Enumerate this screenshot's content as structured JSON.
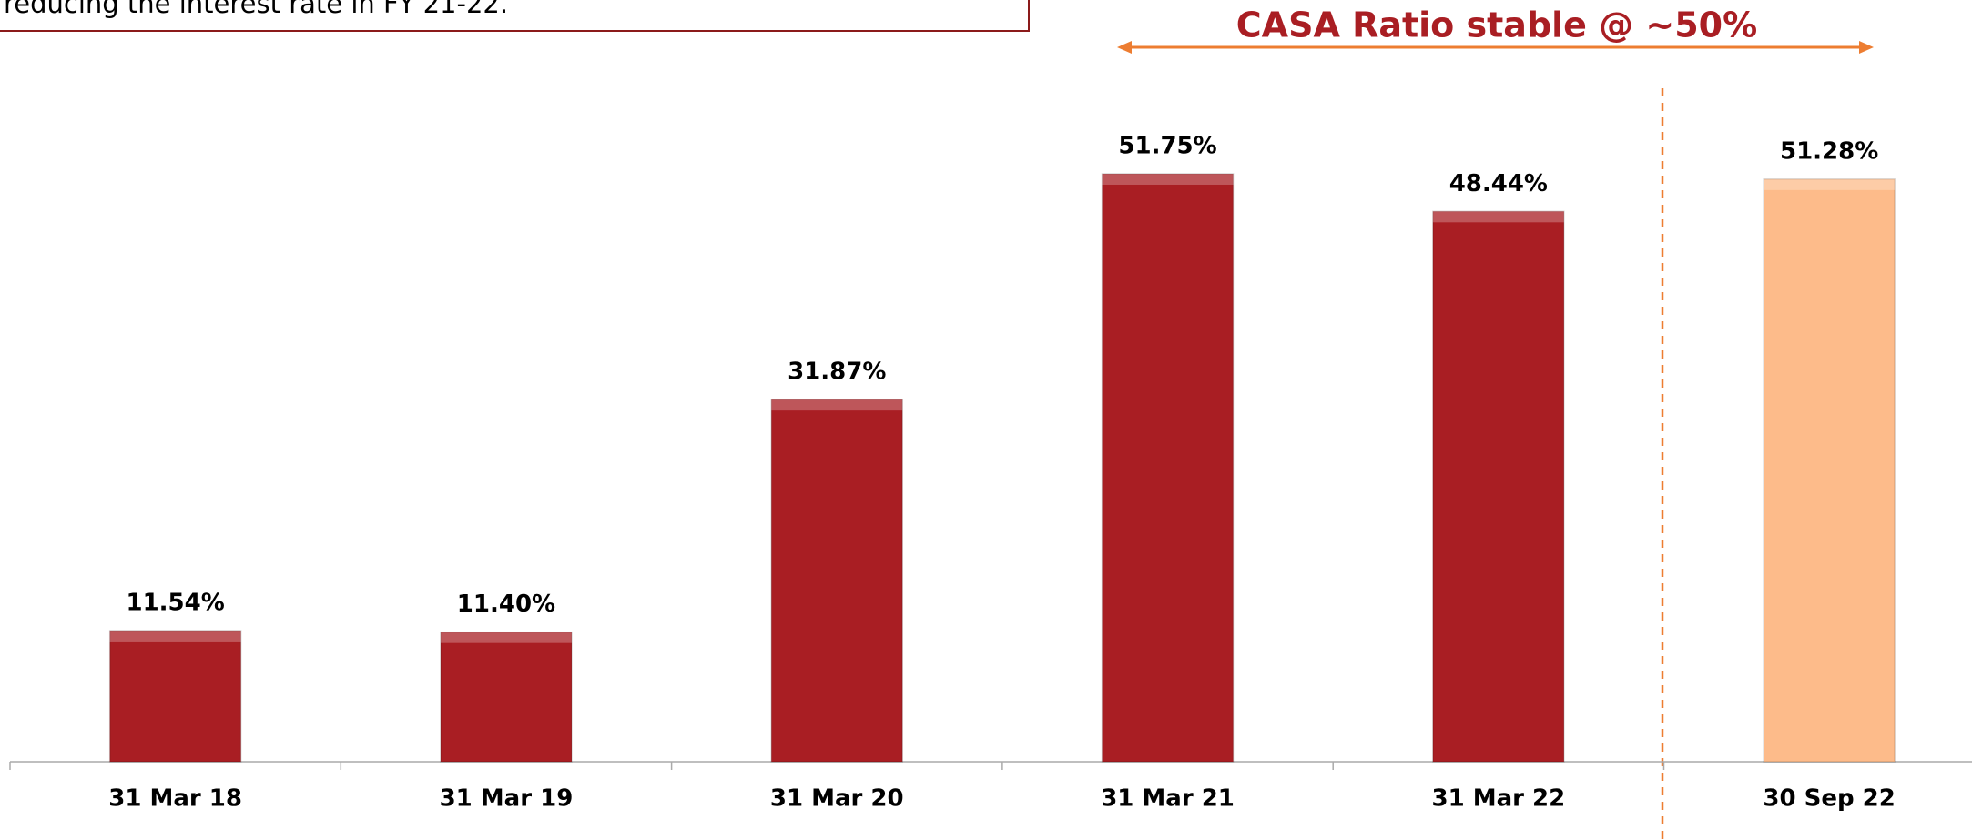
{
  "text_box": "reducing the interest rate in FY 21-22.",
  "chart_data": {
    "type": "bar",
    "annotation": "CASA Ratio stable @ ~50%",
    "categories": [
      "31 Mar 18",
      "31 Mar 19",
      "31 Mar 20",
      "31 Mar 21",
      "31 Mar 22",
      "30 Sep 22"
    ],
    "values": [
      11.54,
      11.4,
      31.87,
      51.75,
      48.44,
      51.28
    ],
    "value_labels": [
      "11.54%",
      "11.40%",
      "31.87%",
      "51.75%",
      "48.44%",
      "51.28%"
    ],
    "colors": [
      "#a91e23",
      "#a91e23",
      "#a91e23",
      "#a91e23",
      "#a91e23",
      "#fdbb8a"
    ],
    "ylim": [
      0,
      60
    ]
  }
}
